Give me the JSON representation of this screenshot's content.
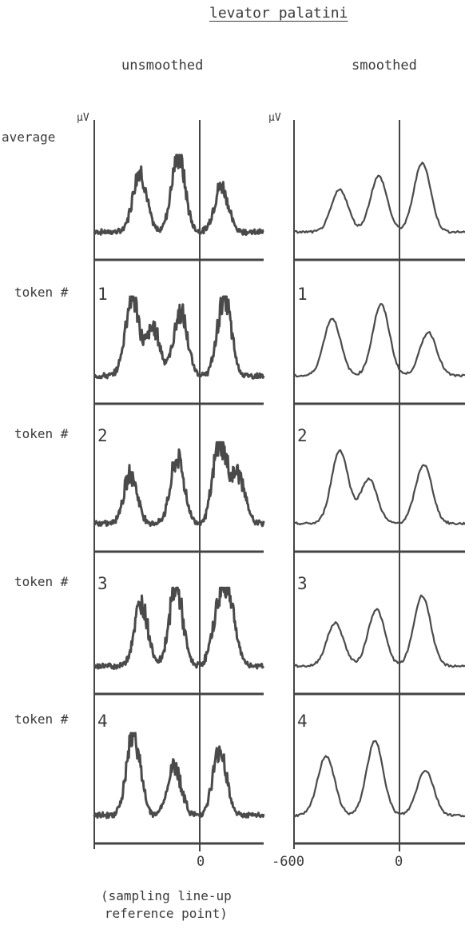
{
  "title": "levator palatini",
  "column_headers": {
    "left": "unsmoothed",
    "right": "smoothed"
  },
  "y_unit": "µV",
  "row_labels": [
    "average",
    "token # ",
    "token # ",
    "token # ",
    "token # "
  ],
  "panel_numbers": [
    "1",
    "2",
    "3",
    "4"
  ],
  "x_ticks": {
    "left": [
      "0"
    ],
    "right": [
      "-600",
      "0"
    ]
  },
  "footnote": [
    "(sampling line-up",
    "reference point)"
  ],
  "chart_data": {
    "type": "line",
    "title": "levator palatini",
    "ylabel": "µV",
    "x_ticks": [
      -600,
      0
    ],
    "reference_line_x": 0,
    "columns": [
      "unsmoothed",
      "smoothed"
    ],
    "rows": [
      "average",
      "token # 1",
      "token # 2",
      "token # 3",
      "token # 4"
    ],
    "series": [
      {
        "name": "average",
        "peaks_unsmoothed": [
          -420,
          -165,
          120
        ],
        "peaks_smoothed": [
          -420,
          -165,
          120
        ]
      },
      {
        "name": "token # 1",
        "peaks_unsmoothed": [
          -470,
          -330,
          -150,
          140
        ],
        "peaks_smoothed": [
          -470,
          -150,
          160
        ]
      },
      {
        "name": "token # 2",
        "peaks_unsmoothed": [
          -480,
          -170,
          110,
          230
        ],
        "peaks_smoothed": [
          -420,
          -230,
          130
        ]
      },
      {
        "name": "token # 3",
        "peaks_unsmoothed": [
          -410,
          -180,
          100,
          170
        ],
        "peaks_smoothed": [
          -450,
          -180,
          120
        ]
      },
      {
        "name": "token # 4",
        "peaks_unsmoothed": [
          -460,
          -190,
          110
        ],
        "peaks_smoothed": [
          -510,
          -190,
          140
        ]
      }
    ]
  }
}
